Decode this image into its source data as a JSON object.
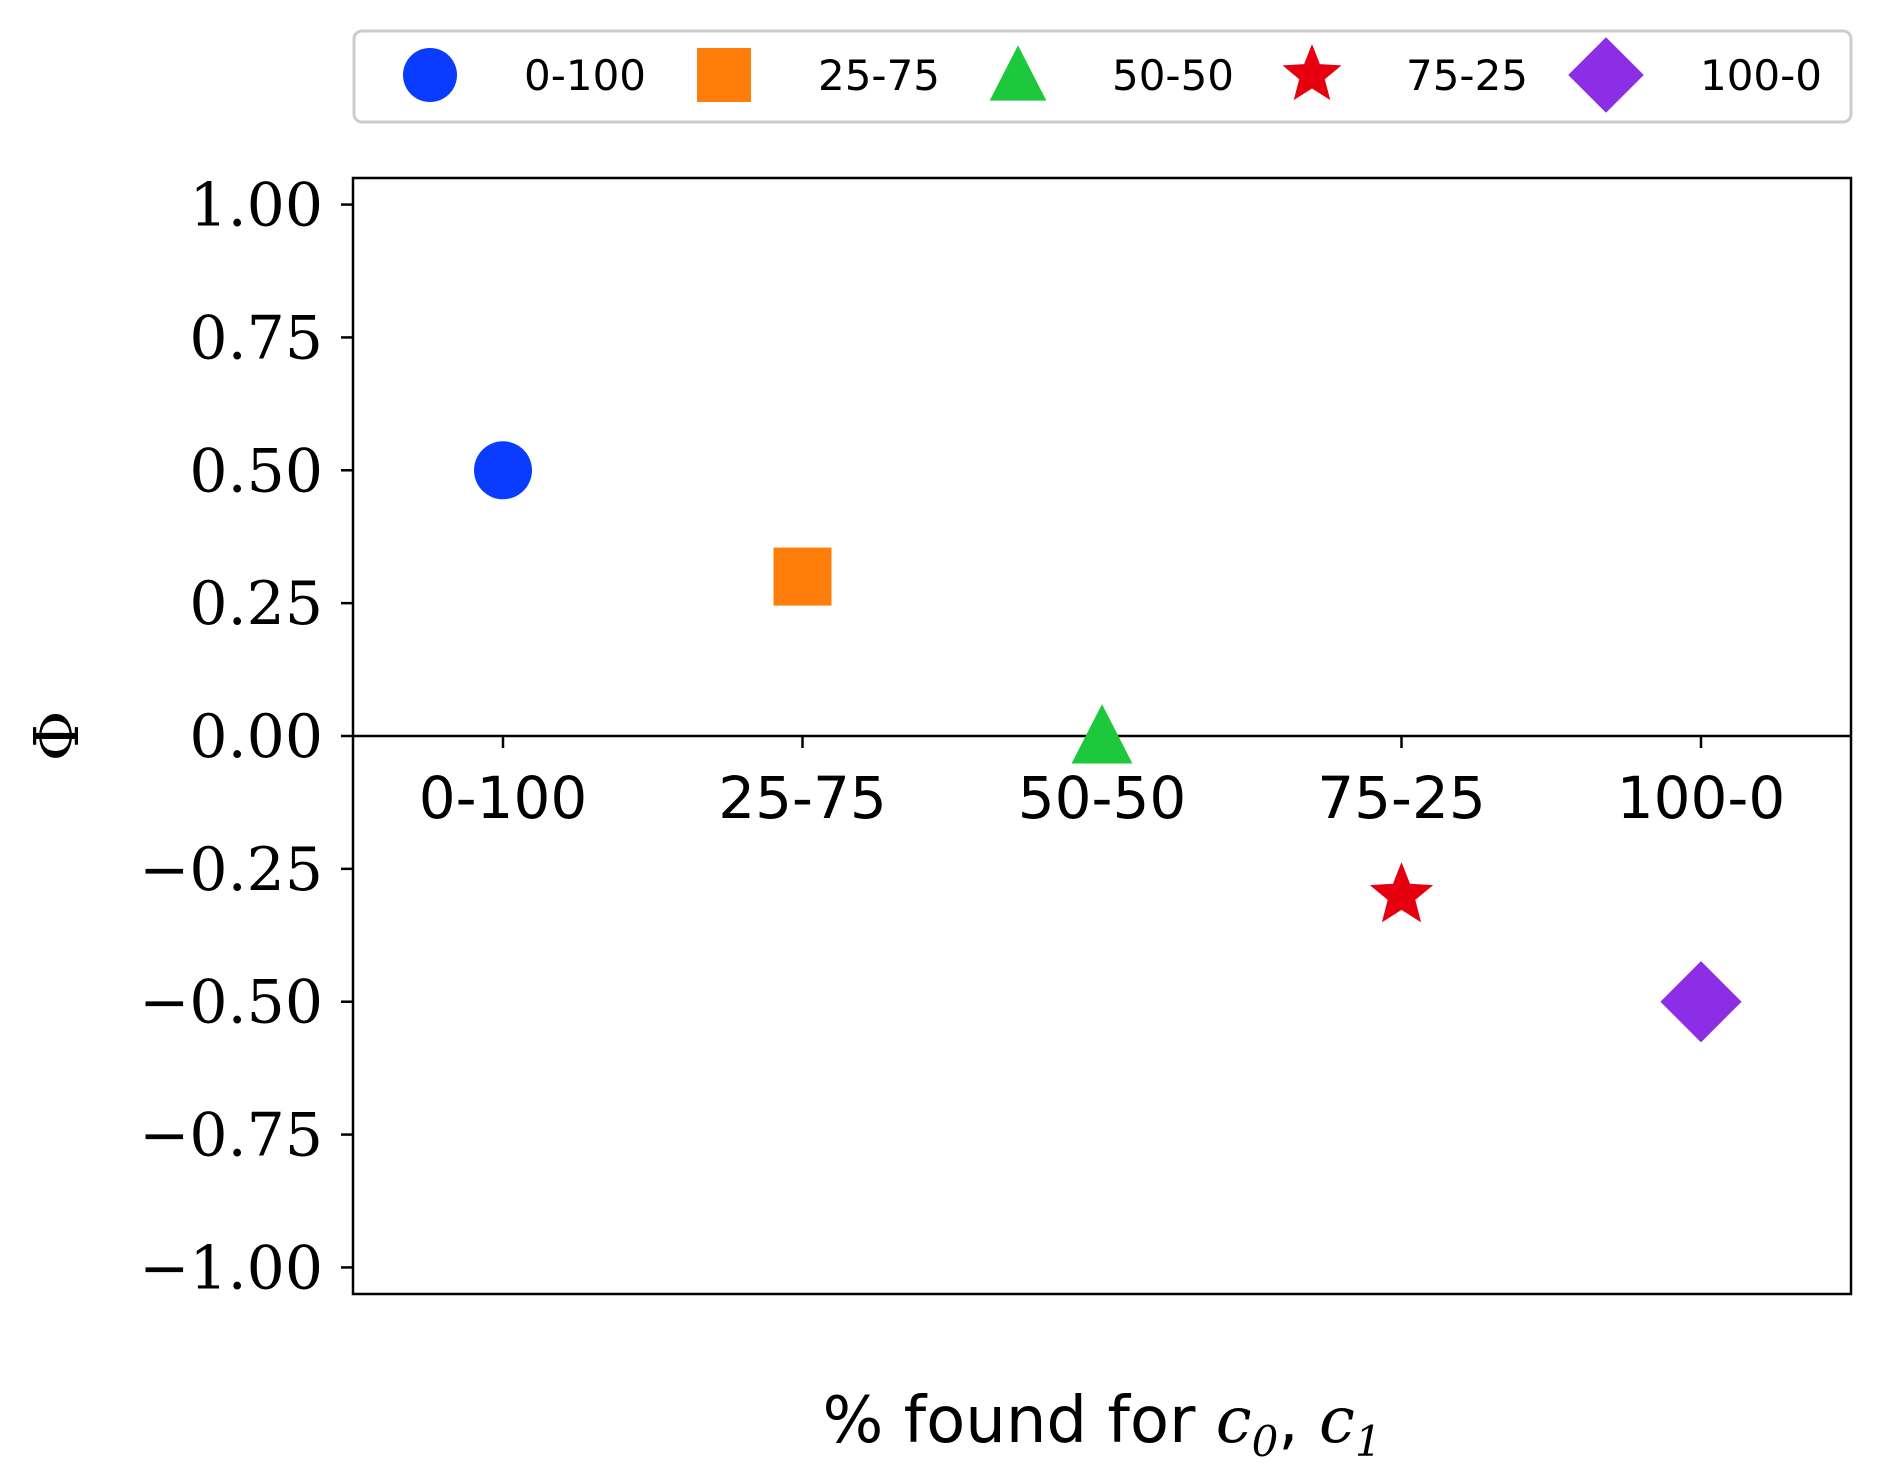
{
  "chart_data": {
    "type": "scatter",
    "categories": [
      "0-100",
      "25-75",
      "50-50",
      "75-25",
      "100-0"
    ],
    "series": [
      {
        "name": "0-100",
        "x": "0-100",
        "y": 0.5,
        "marker": "circle",
        "color": "#0a3cff"
      },
      {
        "name": "25-75",
        "x": "25-75",
        "y": 0.3,
        "marker": "square",
        "color": "#ff7d0a"
      },
      {
        "name": "50-50",
        "x": "50-50",
        "y": 0.0,
        "marker": "triangle",
        "color": "#1ec83c"
      },
      {
        "name": "75-25",
        "x": "75-25",
        "y": -0.3,
        "marker": "star",
        "color": "#e6000f"
      },
      {
        "name": "100-0",
        "x": "100-0",
        "y": -0.5,
        "marker": "diamond",
        "color": "#8c2ee6"
      }
    ],
    "xlabel_text": "% found for ",
    "xlabel_math": "c",
    "xlabel_sub0": "0",
    "xlabel_sep": ", ",
    "xlabel_sub1": "1",
    "ylabel": "Φ",
    "ylim": [
      -1.05,
      1.05
    ],
    "yticks": [
      1.0,
      0.75,
      0.5,
      0.25,
      0.0,
      -0.25,
      -0.5,
      -0.75,
      -1.0
    ],
    "ytick_labels": [
      "1.00",
      "0.75",
      "0.50",
      "0.25",
      "0.00",
      "−0.25",
      "−0.50",
      "−0.75",
      "−1.00"
    ],
    "legend_position": "top, outside plot",
    "zero_line": true,
    "grid": false
  }
}
